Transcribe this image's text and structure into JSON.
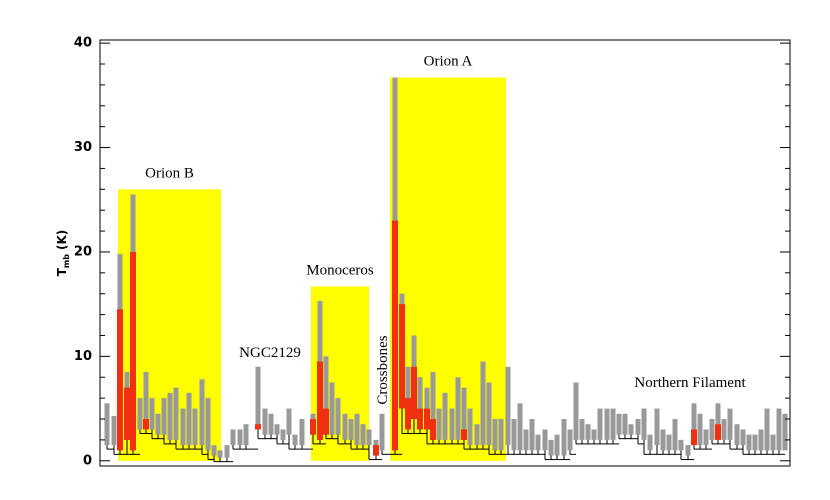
{
  "chart_data": {
    "type": "dendrogram",
    "ylabel": {
      "main": "T",
      "sub": "mb",
      "unit": "(K)"
    },
    "ylim": [
      -0.5,
      40.3
    ],
    "yticks": [
      0,
      10,
      20,
      30,
      40
    ],
    "xlim": [
      100,
      790
    ],
    "leaf_color": "#999999",
    "highlight_color": "#f03010",
    "branch_color": "#000000",
    "region_color": "#ffff00",
    "regions": [
      {
        "name": "Orion B",
        "x": [
          118,
          221
        ],
        "top": 26
      },
      {
        "name": "Monoceros",
        "x": [
          311,
          369
        ],
        "top": 16.7
      },
      {
        "name": "Orion A",
        "x": [
          390,
          506
        ],
        "top": 36.7
      }
    ],
    "annotations": [
      "NGC2129",
      "Crossbones",
      "Northern Filament"
    ],
    "leaves": {
      "x": [
        107,
        114,
        120,
        127,
        133,
        140,
        146,
        152,
        158,
        164,
        170,
        176,
        183,
        189,
        195,
        202,
        208,
        214,
        220,
        227,
        233,
        240,
        246,
        258,
        265,
        271,
        277,
        283,
        289,
        295,
        302,
        313,
        320,
        326,
        332,
        338,
        345,
        351,
        357,
        363,
        369,
        376,
        382,
        395,
        402,
        408,
        414,
        420,
        427,
        433,
        439,
        445,
        452,
        458,
        464,
        470,
        477,
        483,
        489,
        495,
        501,
        508,
        514,
        520,
        526,
        532,
        538,
        545,
        551,
        557,
        564,
        570,
        576,
        582,
        588,
        594,
        600,
        607,
        613,
        619,
        625,
        631,
        638,
        644,
        650,
        657,
        663,
        669,
        675,
        681,
        688,
        694,
        700,
        706,
        712,
        718,
        724,
        730,
        737,
        743,
        749,
        755,
        761,
        767,
        773,
        779,
        785
      ],
      "tops": [
        5.5,
        4.3,
        19.8,
        8.5,
        25.5,
        6,
        8.5,
        6,
        4.5,
        6,
        6.5,
        7,
        5,
        6.5,
        5,
        7.8,
        6,
        1.5,
        1,
        1.5,
        3,
        3,
        3.5,
        9,
        5,
        4.5,
        3.5,
        3,
        5,
        2.5,
        4,
        4.5,
        15.3,
        10,
        7.5,
        6,
        4.5,
        4,
        4.5,
        3.5,
        3,
        2,
        4.5,
        36.7,
        16,
        9,
        12,
        8,
        7,
        8.5,
        5,
        6.5,
        5,
        8,
        7,
        5,
        3.5,
        9.5,
        7.5,
        4,
        4,
        9,
        4,
        5.5,
        3,
        4,
        2.5,
        3,
        2,
        2.5,
        4,
        3,
        7.5,
        4,
        3.5,
        3,
        5,
        5,
        5,
        4.5,
        4.5,
        3.5,
        4,
        5,
        2.5,
        5,
        3,
        2.5,
        4,
        2,
        1.5,
        5.5,
        4.5,
        3,
        4,
        5.5,
        4,
        5,
        3.5,
        3,
        2.5,
        2.5,
        3,
        5,
        2.5,
        5,
        4.5
      ],
      "bottoms": [
        1.5,
        1.5,
        1,
        2,
        1,
        3,
        3,
        3,
        2.5,
        2.5,
        2,
        2,
        1.5,
        1.5,
        1.5,
        1.5,
        1,
        0.5,
        0.3,
        0.3,
        1.5,
        1.5,
        1.5,
        3,
        2.5,
        2.5,
        2.5,
        2,
        2.5,
        1.5,
        1.5,
        2.5,
        2,
        2.5,
        2.5,
        2.5,
        2,
        2,
        1.5,
        1.5,
        1.5,
        0.5,
        1,
        1,
        5,
        3,
        4,
        3,
        3,
        2,
        2,
        2,
        2,
        2,
        2,
        1.5,
        1.5,
        1.5,
        1.5,
        1,
        1,
        1.5,
        1,
        1,
        1,
        1,
        1,
        1,
        0.5,
        0.5,
        0.5,
        1,
        2,
        2,
        2,
        2,
        2,
        2,
        2,
        2.5,
        2.5,
        2.5,
        2.5,
        2,
        1,
        1.5,
        1,
        1,
        1,
        1,
        0.5,
        1.5,
        1.5,
        1.5,
        2,
        2,
        2,
        2,
        1.5,
        1.5,
        1,
        1,
        1,
        1,
        1,
        1,
        1
      ],
      "red_tops": [
        null,
        null,
        14.5,
        7,
        20,
        null,
        4,
        null,
        null,
        null,
        null,
        null,
        null,
        null,
        null,
        null,
        null,
        null,
        null,
        null,
        null,
        null,
        null,
        3.5,
        null,
        null,
        null,
        null,
        null,
        null,
        null,
        4,
        9.5,
        5,
        null,
        null,
        null,
        null,
        null,
        null,
        null,
        1.5,
        null,
        23,
        15,
        6,
        9,
        5,
        5,
        4,
        null,
        null,
        null,
        null,
        3,
        null,
        null,
        null,
        null,
        null,
        null,
        null,
        null,
        null,
        null,
        null,
        null,
        null,
        null,
        null,
        null,
        null,
        null,
        null,
        null,
        null,
        null,
        null,
        null,
        null,
        null,
        null,
        null,
        null,
        null,
        null,
        null,
        null,
        null,
        null,
        null,
        3,
        null,
        null,
        null,
        3.5,
        null,
        null,
        null,
        null,
        null,
        null,
        null,
        null,
        null,
        null,
        null
      ]
    }
  }
}
